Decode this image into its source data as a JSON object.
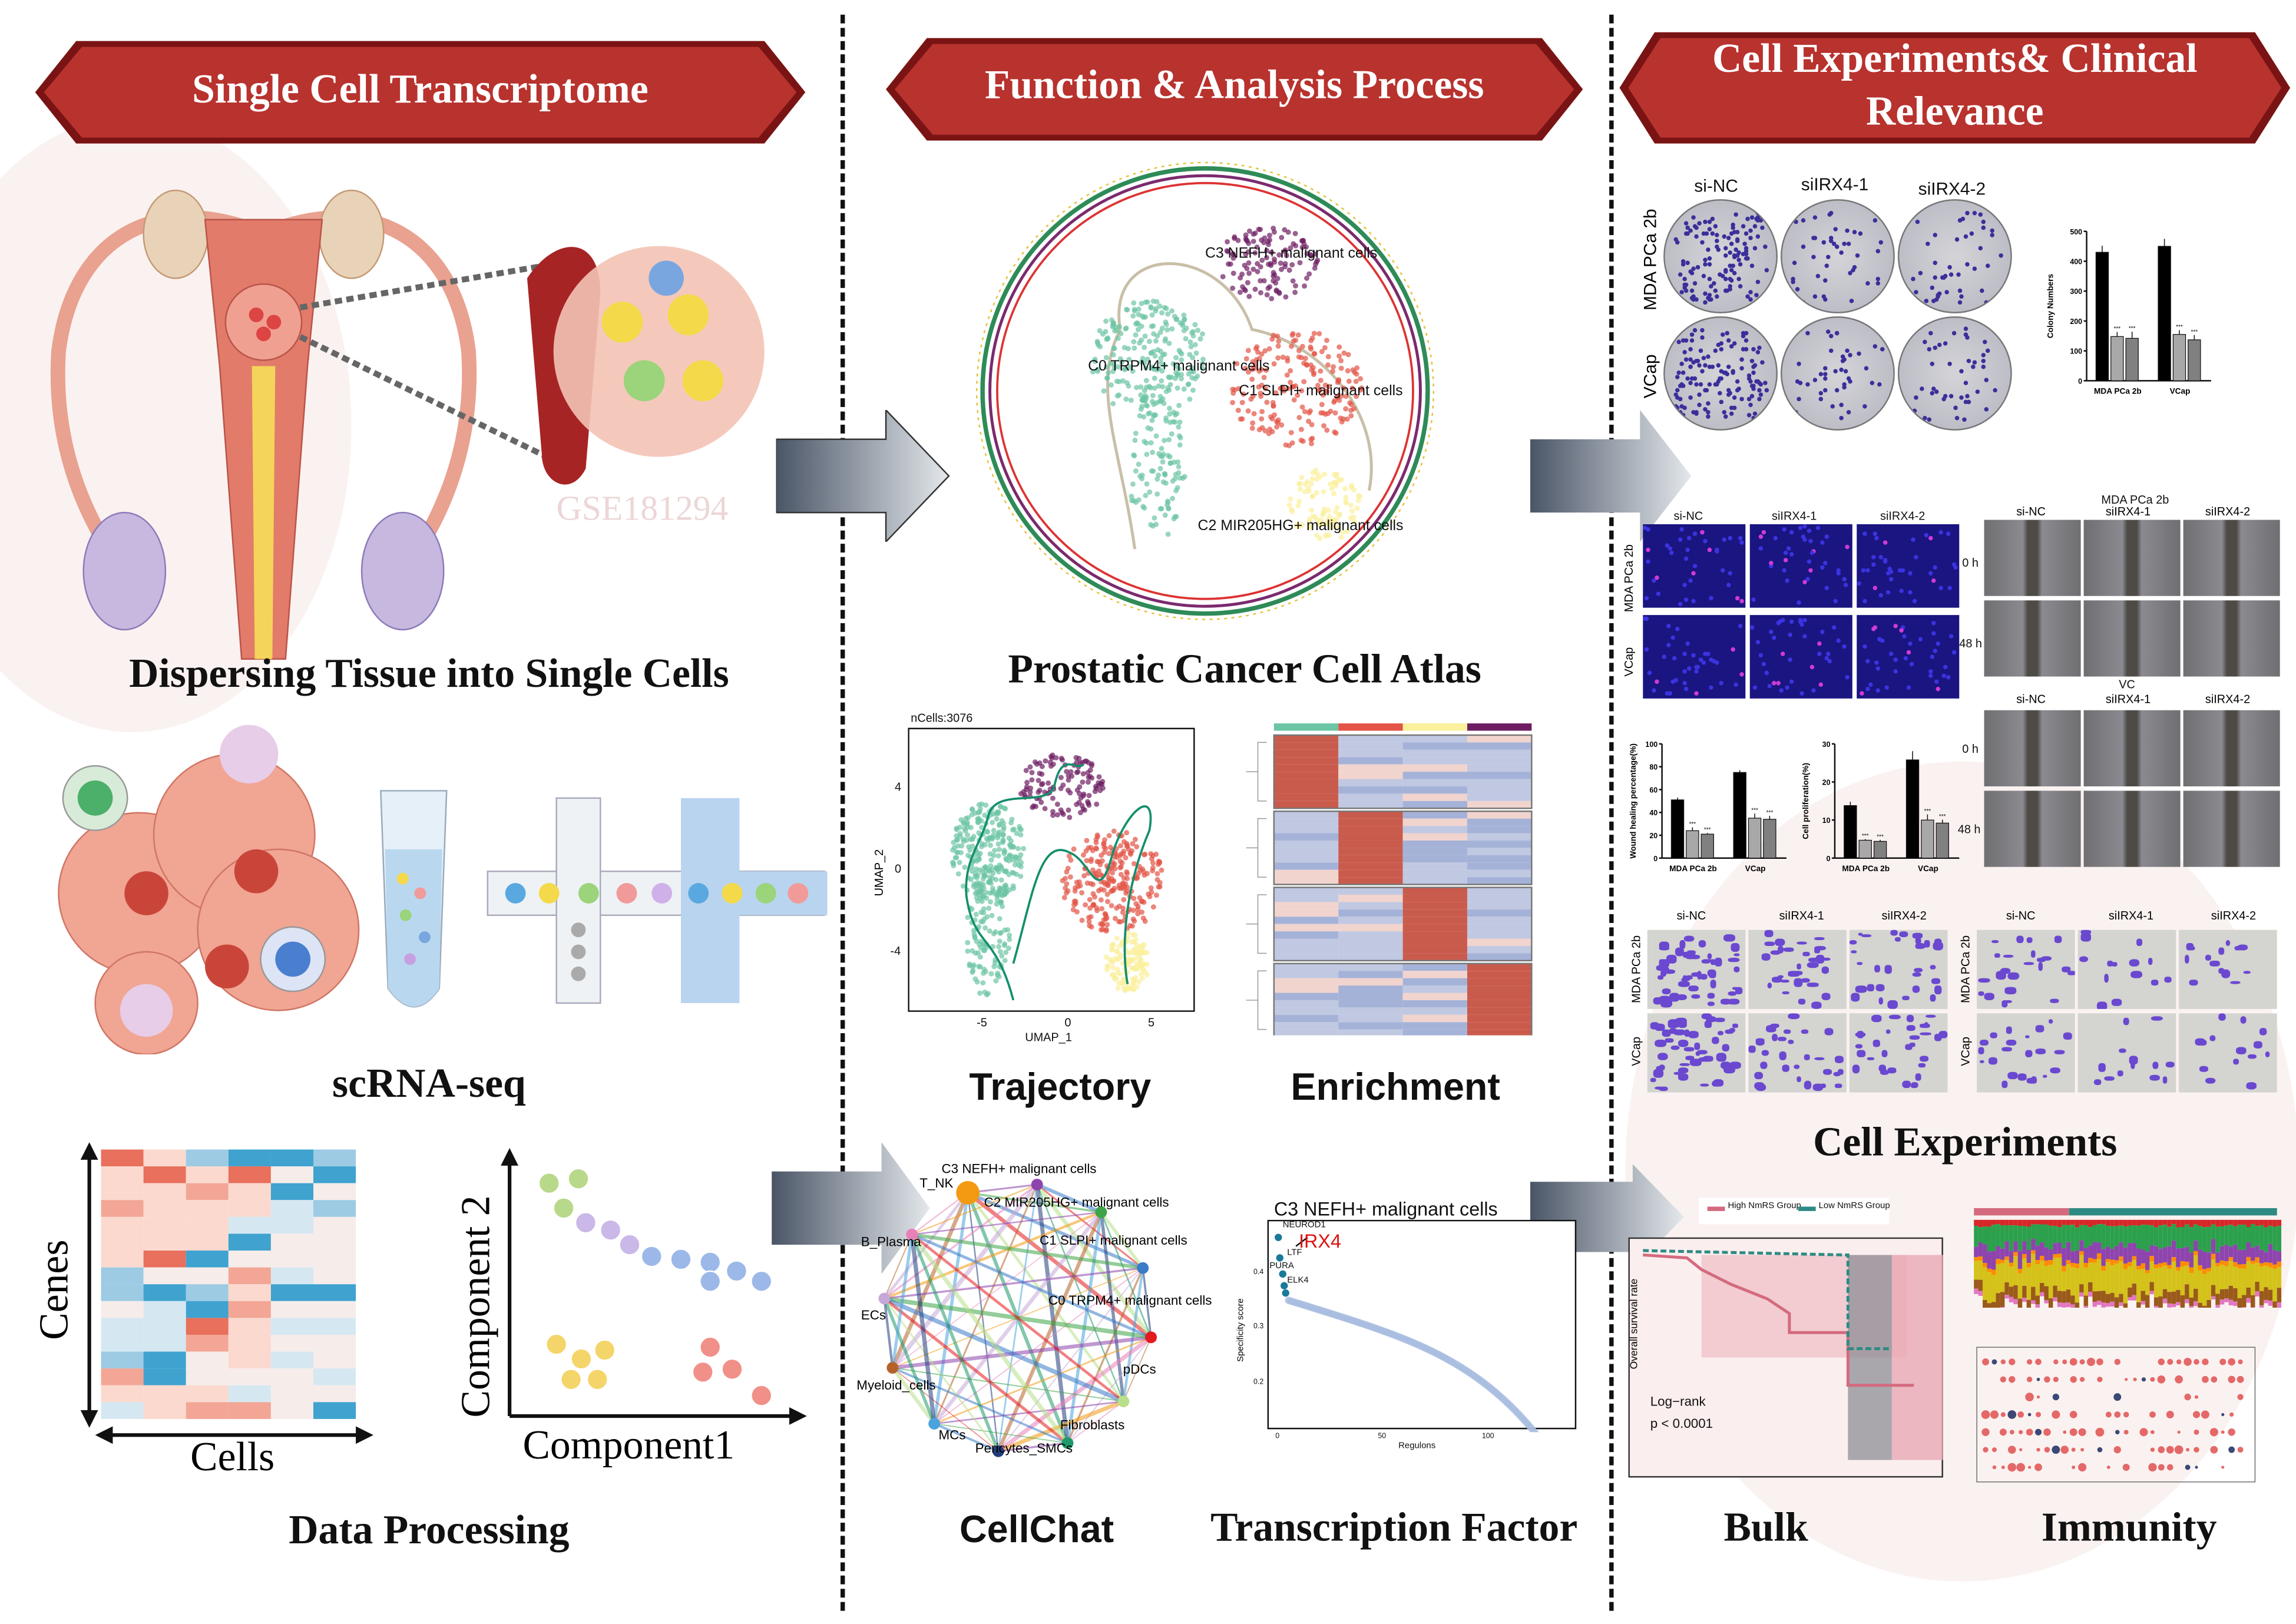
{
  "banners": {
    "left": "Single Cell Transcriptome",
    "middle": "Function & Analysis Process",
    "right_line1": "Cell Experiments& Clinical",
    "right_line2": "Relevance"
  },
  "colors": {
    "banner": "#b8322e",
    "banner_dark": "#7a1414",
    "teal": "#6cc5a4",
    "red": "#e35446",
    "yellow": "#fbf09b",
    "purple": "#6d1e63",
    "blue_cells": "#4a3fb5"
  },
  "left": {
    "watermark": "GSE181294",
    "dispersing": "Dispersing Tissue into Single Cells",
    "scrnaseq": "scRNA-seq",
    "data_processing": "Data Processing",
    "heatmap_y": "Cenes",
    "heatmap_x": "Cells",
    "pca_y": "Component 2",
    "pca_x": "Component1"
  },
  "middle": {
    "atlas_title": "Prostatic Cancer Cell Atlas",
    "atlas_clusters": [
      "C3 NEFH+ malignant cells",
      "C0 TRPM4+ malignant cells",
      "C1 SLPI+ malignant cells",
      "C2 MIR205HG+ malignant cells"
    ],
    "trajectory_title": "Trajectory",
    "enrichment_title": "Enrichment",
    "cellchat_title": "CellChat",
    "tf_title": "Transcription Factor",
    "trajectory": {
      "ncells": "nCells:3076",
      "xlabel": "UMAP_1",
      "ylabel": "UMAP_2",
      "xticks": [
        "-5",
        "0",
        "5"
      ],
      "yticks": [
        "4",
        "0",
        "-4"
      ]
    },
    "cellchat_nodes": [
      "T_NK",
      "C3 NEFH+ malignant cells",
      "C2 MIR205HG+ malignant cells",
      "C1 SLPI+ malignant cells",
      "C0 TRPM4+ malignant cells",
      "pDCs",
      "Fibroblasts",
      "Pericytes_SMCs",
      "MCs",
      "Myeloid_cells",
      "ECs",
      "B_Plasma"
    ],
    "tf": {
      "title": "C3 NEFH+ malignant cells",
      "xlabel": "Regulons",
      "ylabel": "Specificity score",
      "xticks": [
        "0",
        "50",
        "100"
      ],
      "yticks": [
        "0.4",
        "0.3",
        "0.2"
      ],
      "top": [
        "NEUROD1",
        "IRX4",
        "LTF",
        "PURA",
        "ELK4"
      ]
    }
  },
  "right": {
    "conditions": [
      "si-NC",
      "siIRX4-1",
      "siIRX4-2"
    ],
    "cell_lines": [
      "MDA PCa 2b",
      "VCap"
    ],
    "timepoints": [
      "0 h",
      "48 h"
    ],
    "wound_header_top": "MDA PCa 2b",
    "wound_header_bottom": "VC",
    "cell_experiments": "Cell Experiments",
    "bulk": "Bulk",
    "immunity": "Immunity",
    "km": {
      "legend": [
        "High NmRS Group",
        "Low NmRS Group"
      ],
      "ylabel": "Overall survival rate",
      "test": "Log−rank",
      "pvalue": "p < 0.0001"
    }
  },
  "chart_data": [
    {
      "type": "bar",
      "ylabel": "Colony Numbers",
      "categories": [
        "MDA PCa 2b",
        "VCap"
      ],
      "series": [
        {
          "values": [
            430,
            450
          ]
        },
        {
          "values": [
            148,
            155
          ]
        },
        {
          "values": [
            142,
            137
          ]
        }
      ],
      "errors": [
        [
          22,
          25
        ],
        [
          15,
          14
        ],
        [
          22,
          16
        ]
      ],
      "ylim": [
        0,
        500
      ],
      "yticks": [
        "0",
        "100",
        "200",
        "300",
        "400",
        "500"
      ],
      "significance": "***"
    },
    {
      "type": "bar",
      "ylabel": "Wound healing percentage(%)",
      "categories": [
        "MDA PCa 2b",
        "VCap"
      ],
      "series": [
        {
          "values": [
            51,
            75
          ]
        },
        {
          "values": [
            24,
            35
          ]
        },
        {
          "values": [
            21,
            34
          ]
        }
      ],
      "errors": [
        [
          2,
          2
        ],
        [
          3,
          4
        ],
        [
          1,
          3
        ]
      ],
      "ylim": [
        0,
        100
      ],
      "yticks": [
        "0",
        "20",
        "40",
        "60",
        "80",
        "100"
      ],
      "significance": "***"
    },
    {
      "type": "bar",
      "ylabel": "Cell proliferation(%)",
      "categories": [
        "MDA PCa 2b",
        "VCap"
      ],
      "series": [
        {
          "values": [
            13.8,
            25.8
          ]
        },
        {
          "values": [
            4.7,
            10
          ]
        },
        {
          "values": [
            4.4,
            9.2
          ]
        }
      ],
      "errors": [
        [
          1,
          2.3
        ],
        [
          0.3,
          1.5
        ],
        [
          0.4,
          0.9
        ]
      ],
      "ylim": [
        0,
        30
      ],
      "yticks": [
        "0",
        "10",
        "20",
        "30"
      ],
      "significance": "***"
    }
  ]
}
